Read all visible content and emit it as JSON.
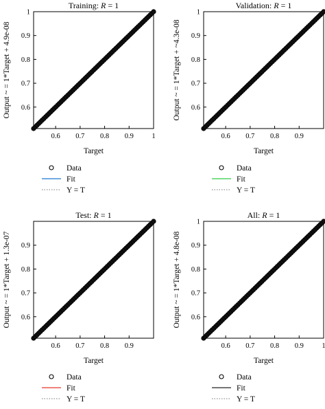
{
  "chart_data": [
    {
      "type": "scatter",
      "title_prefix": "Training: ",
      "title_r": "R",
      "title_suffix": " = 1",
      "xlabel": "Target",
      "ylabel": "Output ~ = 1*Target + 4.9e-08",
      "xlim": [
        0.51,
        1.0
      ],
      "ylim": [
        0.51,
        1.0
      ],
      "xticks": [
        0.6,
        0.7,
        0.8,
        0.9,
        1
      ],
      "yticks": [
        0.6,
        0.7,
        0.8,
        0.9,
        1
      ],
      "x_tick_labels": [
        "0.6",
        "0.7",
        "0.8",
        "0.9",
        "1"
      ],
      "y_tick_labels": [
        "0.6",
        "0.7",
        "0.8",
        "0.9",
        "1"
      ],
      "data_range": [
        0.51,
        1.0
      ],
      "fit_color": "#1f77d4",
      "legend": [
        "Data",
        "Fit",
        "Y = T"
      ],
      "grid": false
    },
    {
      "type": "scatter",
      "title_prefix": "Validation: ",
      "title_r": "R",
      "title_suffix": " = 1",
      "xlabel": "Target",
      "ylabel": "Output ~ = 1*Target + ~4.3e-08",
      "xlim": [
        0.51,
        1.0
      ],
      "ylim": [
        0.51,
        1.0
      ],
      "xticks": [
        0.6,
        0.7,
        0.8,
        0.9
      ],
      "yticks": [
        0.6,
        0.7,
        0.8,
        0.9,
        1
      ],
      "x_tick_labels": [
        "0.6",
        "0.7",
        "0.8",
        "0.9"
      ],
      "y_tick_labels": [
        "0.6",
        "0.7",
        "0.8",
        "0.9",
        "1"
      ],
      "data_range": [
        0.51,
        1.0
      ],
      "fit_color": "#2ecc40",
      "legend": [
        "Data",
        "Fit",
        "Y = T"
      ],
      "grid": false
    },
    {
      "type": "scatter",
      "title_prefix": "Test: ",
      "title_r": "R",
      "title_suffix": " = 1",
      "xlabel": "Target",
      "ylabel": "Output ~ = 1*Target + 1.3e-07",
      "xlim": [
        0.51,
        1.0
      ],
      "ylim": [
        0.51,
        1.0
      ],
      "xticks": [
        0.6,
        0.7,
        0.8,
        0.9
      ],
      "yticks": [
        0.6,
        0.7,
        0.8,
        0.9
      ],
      "x_tick_labels": [
        "0.6",
        "0.7",
        "0.8",
        "0.9"
      ],
      "y_tick_labels": [
        "0.6",
        "0.7",
        "0.8",
        "0.9"
      ],
      "data_range": [
        0.51,
        1.0
      ],
      "fit_color": "#e8352b",
      "legend": [
        "Data",
        "Fit",
        "Y = T"
      ],
      "grid": false
    },
    {
      "type": "scatter",
      "title_prefix": "All: ",
      "title_r": "R",
      "title_suffix": " = 1",
      "xlabel": "Target",
      "ylabel": "Output ~ = 1*Target + 4.8e-08",
      "xlim": [
        0.51,
        1.0
      ],
      "ylim": [
        0.51,
        1.0
      ],
      "xticks": [
        0.6,
        0.7,
        0.8,
        0.9,
        1
      ],
      "yticks": [
        0.6,
        0.7,
        0.8,
        0.9,
        1
      ],
      "x_tick_labels": [
        "0.6",
        "0.7",
        "0.8",
        "0.9",
        "1"
      ],
      "y_tick_labels": [
        "0.6",
        "0.7",
        "0.8",
        "0.9",
        "1"
      ],
      "data_range": [
        0.51,
        1.0
      ],
      "fit_color": "#222222",
      "legend": [
        "Data",
        "Fit",
        "Y = T"
      ],
      "grid": false
    }
  ]
}
